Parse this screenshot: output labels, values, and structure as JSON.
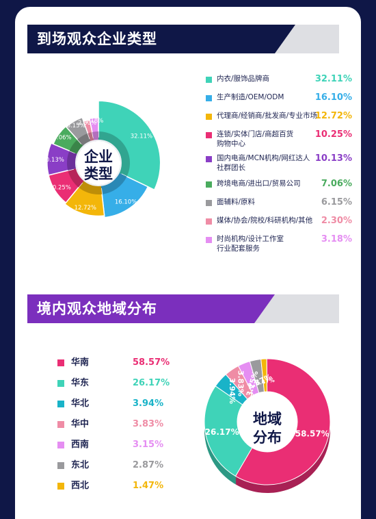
{
  "section1": {
    "title": "到场观众企业类型",
    "center": [
      "企业",
      "类型"
    ]
  },
  "section2": {
    "title": "境内观众地域分布",
    "center": [
      "地域",
      "分布"
    ]
  },
  "colors": {
    "navy": "#0f1747",
    "purple": "#7b2fbd"
  },
  "chart_data": [
    {
      "type": "pie",
      "title": "到场观众企业类型",
      "categories": [
        "内衣/服饰品牌商",
        "生产制造/OEM/ODM",
        "代理商/经销商/批发商/专业市场",
        "连锁/实体门店/商超百货购物中心",
        "国内电商/MCN机构/网红达人社群团长",
        "跨境电商/进出口/贸易公司",
        "面辅料/原料",
        "媒体/协会/院校/科研机构/其他",
        "时尚机构/设计工作室行业配套服务"
      ],
      "label_lines": [
        [
          "内衣/服饰品牌商"
        ],
        [
          "生产制造/OEM/ODM"
        ],
        [
          "代理商/经销商/批发商/专业市场"
        ],
        [
          "连锁/实体门店/商超百货",
          "购物中心"
        ],
        [
          "国内电商/MCN机构/网红达人",
          "社群团长"
        ],
        [
          "跨境电商/进出口/贸易公司"
        ],
        [
          "面辅料/原料"
        ],
        [
          "媒体/协会/院校/科研机构/其他"
        ],
        [
          "时尚机构/设计工作室",
          "行业配套服务"
        ]
      ],
      "values": [
        32.11,
        16.1,
        12.72,
        10.25,
        10.13,
        7.06,
        6.15,
        2.3,
        3.18
      ],
      "value_labels": [
        "32.11%",
        "16.10%",
        "12.72%",
        "10.25%",
        "10.13%",
        "7.06%",
        "6.15%",
        "2.30%",
        "3.18%"
      ],
      "slice_labels": [
        "32.11%",
        "16.10%",
        "12.72%",
        "10.25%",
        "10.13%",
        "7.06%",
        "6.15%",
        "2.30%",
        "3.18%"
      ],
      "colors": [
        "#3fd3b8",
        "#36aee8",
        "#f3b60a",
        "#ea2e74",
        "#8a3ec6",
        "#4aab5e",
        "#9a9a9d",
        "#ef8ca5",
        "#e58ef2"
      ],
      "legend": "right"
    },
    {
      "type": "pie",
      "title": "境内观众地域分布",
      "categories": [
        "华南",
        "华东",
        "华北",
        "华中",
        "西南",
        "东北",
        "西北"
      ],
      "values": [
        58.57,
        26.17,
        3.94,
        3.83,
        3.15,
        2.87,
        1.47
      ],
      "value_labels": [
        "58.57%",
        "26.17%",
        "3.94%",
        "3.83%",
        "3.15%",
        "2.87%",
        "1.47%"
      ],
      "slice_labels": [
        "58.57%",
        "26.17%",
        "3.94%",
        "3.83%",
        "3.15%",
        "2.87%",
        "1.47%"
      ],
      "colors": [
        "#ea2e74",
        "#3fd3b8",
        "#19b3c8",
        "#ef8ca5",
        "#e58ef2",
        "#9a9a9d",
        "#f3b60a"
      ],
      "legend": "left"
    }
  ]
}
